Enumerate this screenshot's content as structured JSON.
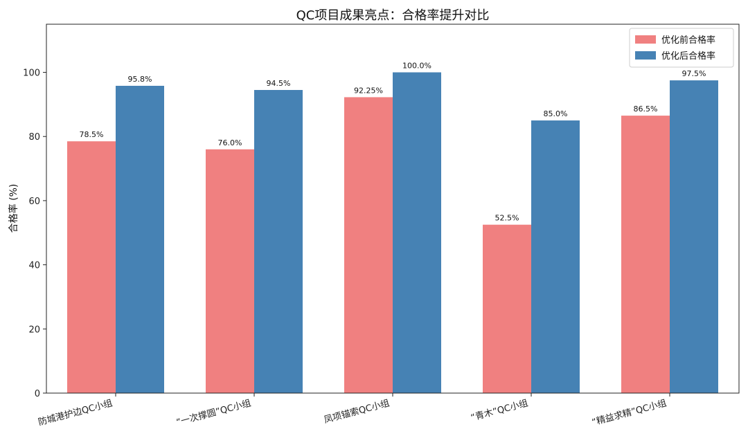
{
  "chart_data": {
    "type": "bar",
    "title": "QC项目成果亮点：合格率提升对比",
    "xlabel": "",
    "ylabel": "合格率 (%)",
    "ylim": [
      0,
      115
    ],
    "yticks": [
      0,
      20,
      40,
      60,
      80,
      100
    ],
    "grid": false,
    "legend_position": "top-right",
    "categories": [
      "防城港护边QC小组",
      "“一次撑圆”QC小组",
      "凤项锚索QC小组",
      "“青木”QC小组",
      "“精益求精”QC小组"
    ],
    "series": [
      {
        "name": "优化前合格率",
        "color": "#f08080",
        "values": [
          78.5,
          76.0,
          92.25,
          52.5,
          86.5
        ],
        "labels": [
          "78.5%",
          "76.0%",
          "92.25%",
          "52.5%",
          "86.5%"
        ]
      },
      {
        "name": "优化后合格率",
        "color": "#4682b4",
        "values": [
          95.8,
          94.5,
          100.0,
          85.0,
          97.5
        ],
        "labels": [
          "95.8%",
          "94.5%",
          "100.0%",
          "85.0%",
          "97.5%"
        ]
      }
    ]
  }
}
